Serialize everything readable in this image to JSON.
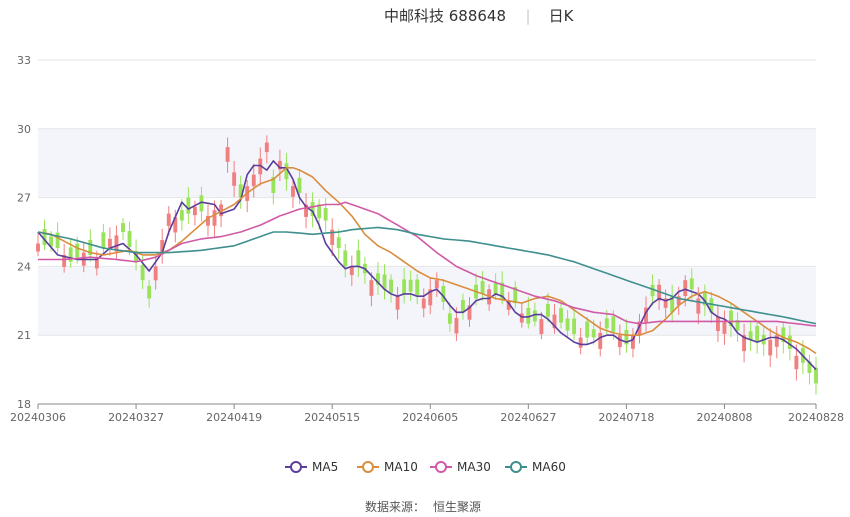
{
  "header": {
    "stock_name": "中邮科技 688648",
    "period": "日K",
    "separator": "|"
  },
  "footer": {
    "source_label": "数据来源：",
    "source_name": "恒生聚源"
  },
  "colors": {
    "up": "#f08080",
    "down": "#98e35a",
    "ma5": "#5b3d9c",
    "ma10": "#d98d3d",
    "ma30": "#d15aa6",
    "ma60": "#3f8f8f",
    "band": "#f4f5fb",
    "grid": "#e6e6e6"
  },
  "chart_data": {
    "type": "candlestick",
    "title": "中邮科技 688648 日K",
    "ylim": [
      18,
      33
    ],
    "yticks": [
      18,
      21,
      24,
      27,
      30,
      33
    ],
    "xtick_labels": [
      "20240306",
      "20240327",
      "20240419",
      "20240515",
      "20240605",
      "20240627",
      "20240718",
      "20240808",
      "20240828"
    ],
    "xtick_indices": [
      0,
      15,
      30,
      45,
      60,
      75,
      90,
      105,
      119
    ],
    "legend": [
      "MA5",
      "MA10",
      "MA30",
      "MA60"
    ],
    "legend_position": "bottom-center",
    "ma5_anchors": [
      [
        0,
        25.5
      ],
      [
        3,
        24.5
      ],
      [
        6,
        24.3
      ],
      [
        9,
        24.3
      ],
      [
        11,
        24.8
      ],
      [
        13,
        25.0
      ],
      [
        15,
        24.5
      ],
      [
        17,
        23.8
      ],
      [
        19,
        24.6
      ],
      [
        20,
        25.5
      ],
      [
        22,
        26.8
      ],
      [
        23,
        26.5
      ],
      [
        25,
        26.8
      ],
      [
        27,
        26.7
      ],
      [
        28,
        26.3
      ],
      [
        30,
        26.5
      ],
      [
        31,
        26.9
      ],
      [
        32,
        28.0
      ],
      [
        33,
        28.4
      ],
      [
        34,
        28.4
      ],
      [
        35,
        28.2
      ],
      [
        36,
        28.6
      ],
      [
        37,
        28.3
      ],
      [
        38,
        28.3
      ],
      [
        39,
        27.8
      ],
      [
        40,
        27.0
      ],
      [
        41,
        26.6
      ],
      [
        42,
        26.4
      ],
      [
        43,
        25.8
      ],
      [
        44,
        25.0
      ],
      [
        45,
        24.6
      ],
      [
        46,
        24.2
      ],
      [
        47,
        23.9
      ],
      [
        48,
        24.0
      ],
      [
        49,
        24.0
      ],
      [
        50,
        23.9
      ],
      [
        51,
        23.6
      ],
      [
        52,
        23.3
      ],
      [
        53,
        23.0
      ],
      [
        54,
        22.8
      ],
      [
        55,
        22.7
      ],
      [
        56,
        22.8
      ],
      [
        57,
        22.8
      ],
      [
        58,
        22.7
      ],
      [
        59,
        22.7
      ],
      [
        60,
        22.9
      ],
      [
        61,
        23.0
      ],
      [
        62,
        22.7
      ],
      [
        63,
        22.3
      ],
      [
        64,
        22.0
      ],
      [
        65,
        22.0
      ],
      [
        66,
        22.2
      ],
      [
        67,
        22.5
      ],
      [
        68,
        22.6
      ],
      [
        69,
        22.6
      ],
      [
        70,
        22.8
      ],
      [
        71,
        22.7
      ],
      [
        72,
        22.4
      ],
      [
        73,
        22.0
      ],
      [
        74,
        21.8
      ],
      [
        75,
        21.8
      ],
      [
        76,
        21.9
      ],
      [
        77,
        21.9
      ],
      [
        78,
        21.7
      ],
      [
        79,
        21.4
      ],
      [
        80,
        21.1
      ],
      [
        81,
        20.9
      ],
      [
        82,
        20.7
      ],
      [
        83,
        20.6
      ],
      [
        84,
        20.6
      ],
      [
        85,
        20.7
      ],
      [
        86,
        20.9
      ],
      [
        87,
        21.0
      ],
      [
        88,
        21.0
      ],
      [
        89,
        20.8
      ],
      [
        90,
        20.7
      ],
      [
        91,
        20.8
      ],
      [
        92,
        21.4
      ],
      [
        93,
        22.0
      ],
      [
        94,
        22.4
      ],
      [
        95,
        22.6
      ],
      [
        96,
        22.5
      ],
      [
        97,
        22.6
      ],
      [
        98,
        22.9
      ],
      [
        99,
        23.0
      ],
      [
        100,
        22.9
      ],
      [
        101,
        22.8
      ],
      [
        102,
        22.5
      ],
      [
        103,
        22.0
      ],
      [
        104,
        21.8
      ],
      [
        105,
        21.7
      ],
      [
        106,
        21.5
      ],
      [
        107,
        21.1
      ],
      [
        108,
        20.9
      ],
      [
        109,
        20.8
      ],
      [
        110,
        20.7
      ],
      [
        111,
        20.8
      ],
      [
        112,
        20.9
      ],
      [
        113,
        20.9
      ],
      [
        114,
        20.8
      ],
      [
        115,
        20.6
      ],
      [
        116,
        20.4
      ],
      [
        117,
        20.1
      ],
      [
        118,
        19.8
      ],
      [
        119,
        19.5
      ]
    ],
    "ma10_anchors": [
      [
        0,
        25.5
      ],
      [
        2,
        25.4
      ],
      [
        4,
        25.1
      ],
      [
        6,
        24.8
      ],
      [
        8,
        24.6
      ],
      [
        10,
        24.5
      ],
      [
        12,
        24.6
      ],
      [
        14,
        24.7
      ],
      [
        16,
        24.5
      ],
      [
        18,
        24.5
      ],
      [
        20,
        24.7
      ],
      [
        22,
        25.1
      ],
      [
        24,
        25.6
      ],
      [
        26,
        26.1
      ],
      [
        28,
        26.4
      ],
      [
        30,
        26.7
      ],
      [
        32,
        27.2
      ],
      [
        34,
        27.6
      ],
      [
        36,
        27.8
      ],
      [
        38,
        28.3
      ],
      [
        39,
        28.3
      ],
      [
        40,
        28.2
      ],
      [
        42,
        27.9
      ],
      [
        44,
        27.3
      ],
      [
        46,
        26.8
      ],
      [
        48,
        26.2
      ],
      [
        50,
        25.4
      ],
      [
        52,
        24.9
      ],
      [
        54,
        24.6
      ],
      [
        56,
        24.2
      ],
      [
        58,
        23.8
      ],
      [
        60,
        23.5
      ],
      [
        62,
        23.4
      ],
      [
        64,
        23.2
      ],
      [
        66,
        23.0
      ],
      [
        68,
        22.8
      ],
      [
        70,
        22.6
      ],
      [
        72,
        22.5
      ],
      [
        74,
        22.4
      ],
      [
        76,
        22.6
      ],
      [
        78,
        22.7
      ],
      [
        80,
        22.5
      ],
      [
        82,
        22.1
      ],
      [
        84,
        21.7
      ],
      [
        86,
        21.3
      ],
      [
        88,
        21.1
      ],
      [
        90,
        21.0
      ],
      [
        92,
        21.0
      ],
      [
        94,
        21.2
      ],
      [
        96,
        21.7
      ],
      [
        98,
        22.3
      ],
      [
        100,
        22.7
      ],
      [
        102,
        22.9
      ],
      [
        104,
        22.7
      ],
      [
        106,
        22.4
      ],
      [
        108,
        22.0
      ],
      [
        110,
        21.6
      ],
      [
        112,
        21.2
      ],
      [
        114,
        20.9
      ],
      [
        116,
        20.7
      ],
      [
        118,
        20.4
      ],
      [
        119,
        20.2
      ]
    ],
    "ma30_anchors": [
      [
        0,
        24.3
      ],
      [
        4,
        24.3
      ],
      [
        8,
        24.4
      ],
      [
        12,
        24.3
      ],
      [
        15,
        24.2
      ],
      [
        18,
        24.4
      ],
      [
        20,
        24.7
      ],
      [
        22,
        25.0
      ],
      [
        25,
        25.2
      ],
      [
        28,
        25.3
      ],
      [
        31,
        25.5
      ],
      [
        34,
        25.8
      ],
      [
        37,
        26.2
      ],
      [
        40,
        26.5
      ],
      [
        42,
        26.6
      ],
      [
        44,
        26.7
      ],
      [
        46,
        26.7
      ],
      [
        47,
        26.8
      ],
      [
        49,
        26.6
      ],
      [
        52,
        26.3
      ],
      [
        55,
        25.8
      ],
      [
        58,
        25.3
      ],
      [
        61,
        24.6
      ],
      [
        64,
        24.0
      ],
      [
        67,
        23.6
      ],
      [
        70,
        23.3
      ],
      [
        73,
        23.0
      ],
      [
        76,
        22.7
      ],
      [
        79,
        22.5
      ],
      [
        82,
        22.2
      ],
      [
        85,
        22.0
      ],
      [
        88,
        21.9
      ],
      [
        90,
        21.6
      ],
      [
        92,
        21.5
      ],
      [
        95,
        21.6
      ],
      [
        98,
        21.6
      ],
      [
        101,
        21.6
      ],
      [
        104,
        21.6
      ],
      [
        107,
        21.6
      ],
      [
        110,
        21.6
      ],
      [
        113,
        21.6
      ],
      [
        116,
        21.5
      ],
      [
        119,
        21.4
      ]
    ],
    "ma60_anchors": [
      [
        0,
        25.5
      ],
      [
        5,
        25.2
      ],
      [
        10,
        24.8
      ],
      [
        15,
        24.6
      ],
      [
        20,
        24.6
      ],
      [
        25,
        24.7
      ],
      [
        30,
        24.9
      ],
      [
        33,
        25.2
      ],
      [
        35,
        25.4
      ],
      [
        36,
        25.5
      ],
      [
        38,
        25.5
      ],
      [
        42,
        25.4
      ],
      [
        46,
        25.5
      ],
      [
        48,
        25.6
      ],
      [
        52,
        25.7
      ],
      [
        55,
        25.6
      ],
      [
        58,
        25.4
      ],
      [
        62,
        25.2
      ],
      [
        66,
        25.1
      ],
      [
        70,
        24.9
      ],
      [
        74,
        24.7
      ],
      [
        78,
        24.5
      ],
      [
        82,
        24.2
      ],
      [
        86,
        23.8
      ],
      [
        90,
        23.4
      ],
      [
        94,
        23.0
      ],
      [
        98,
        22.6
      ],
      [
        102,
        22.4
      ],
      [
        106,
        22.2
      ],
      [
        110,
        22.0
      ],
      [
        114,
        21.8
      ],
      [
        119,
        21.5
      ]
    ],
    "candle_closes": [
      [
        0,
        25.0
      ],
      [
        3,
        24.8
      ],
      [
        5,
        24.2
      ],
      [
        7,
        24.6
      ],
      [
        9,
        24.4
      ],
      [
        11,
        25.2
      ],
      [
        13,
        25.5
      ],
      [
        15,
        24.2
      ],
      [
        17,
        22.6
      ],
      [
        18,
        24.0
      ],
      [
        20,
        26.3
      ],
      [
        22,
        26.0
      ],
      [
        24,
        26.6
      ],
      [
        26,
        26.2
      ],
      [
        28,
        26.7
      ],
      [
        29,
        29.2
      ],
      [
        31,
        27.0
      ],
      [
        33,
        28.0
      ],
      [
        35,
        29.4
      ],
      [
        36,
        27.2
      ],
      [
        37,
        28.6
      ],
      [
        38,
        27.8
      ],
      [
        40,
        27.2
      ],
      [
        42,
        26.2
      ],
      [
        44,
        26.0
      ],
      [
        45,
        25.6
      ],
      [
        47,
        24.0
      ],
      [
        49,
        24.0
      ],
      [
        51,
        23.4
      ],
      [
        53,
        23.0
      ],
      [
        55,
        22.7
      ],
      [
        57,
        22.9
      ],
      [
        59,
        22.6
      ],
      [
        61,
        23.4
      ],
      [
        63,
        21.5
      ],
      [
        65,
        22.0
      ],
      [
        67,
        22.6
      ],
      [
        69,
        23.0
      ],
      [
        71,
        22.6
      ],
      [
        73,
        22.4
      ],
      [
        75,
        21.5
      ],
      [
        77,
        21.7
      ],
      [
        79,
        21.9
      ],
      [
        81,
        21.2
      ],
      [
        83,
        20.9
      ],
      [
        85,
        20.9
      ],
      [
        87,
        21.3
      ],
      [
        89,
        21.0
      ],
      [
        90,
        20.6
      ],
      [
        91,
        21.0
      ],
      [
        93,
        22.2
      ],
      [
        95,
        23.2
      ],
      [
        97,
        22.0
      ],
      [
        99,
        23.4
      ],
      [
        101,
        22.6
      ],
      [
        103,
        22.0
      ],
      [
        105,
        21.6
      ],
      [
        107,
        21.2
      ],
      [
        109,
        20.8
      ],
      [
        111,
        20.6
      ],
      [
        113,
        21.0
      ],
      [
        115,
        20.4
      ],
      [
        117,
        19.8
      ],
      [
        119,
        18.9
      ]
    ],
    "up_candle_days": [
      0,
      4,
      7,
      9,
      11,
      12,
      18,
      19,
      20,
      21,
      24,
      26,
      27,
      28,
      29,
      30,
      32,
      33,
      34,
      35,
      37,
      39,
      41,
      45,
      48,
      51,
      55,
      59,
      60,
      61,
      64,
      66,
      69,
      72,
      74,
      77,
      79,
      83,
      86,
      89,
      91,
      92,
      93,
      95,
      96,
      98,
      99,
      101,
      104,
      105,
      108,
      112,
      113,
      116
    ]
  }
}
